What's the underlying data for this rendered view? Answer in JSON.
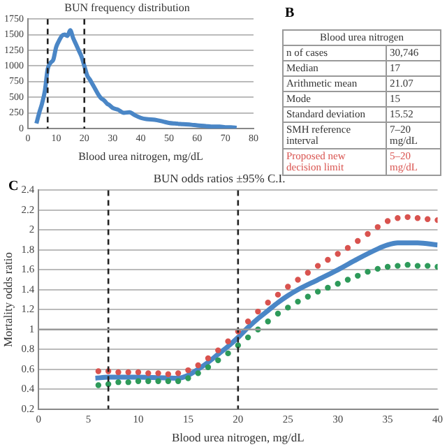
{
  "chart_data": [
    {
      "type": "line",
      "title": "BUN frequency distribution",
      "xlabel": "Blood urea nitrogen, mg/dL",
      "xlim": [
        0,
        80
      ],
      "xticks": [
        0,
        10,
        20,
        30,
        40,
        50,
        60,
        70,
        80
      ],
      "ylim": [
        0,
        1750
      ],
      "yticks": [
        0,
        250,
        500,
        750,
        1000,
        1250,
        1500,
        1750
      ],
      "grid": "y",
      "legend": false,
      "series": [
        {
          "color": "#4a86c6",
          "x": [
            3,
            4,
            5,
            6,
            7,
            8,
            9,
            10,
            11,
            12,
            13,
            14,
            15,
            16,
            17,
            18,
            19,
            20,
            21,
            22,
            23,
            24,
            25,
            26,
            27,
            28,
            29,
            30,
            32,
            34,
            36,
            38,
            40,
            42,
            45,
            48,
            50,
            52,
            55,
            58,
            60,
            63,
            65,
            68,
            70,
            72,
            74
          ],
          "values": [
            80,
            250,
            400,
            600,
            950,
            1050,
            1100,
            1300,
            1400,
            1480,
            1500,
            1480,
            1570,
            1450,
            1350,
            1250,
            1150,
            1000,
            850,
            780,
            700,
            620,
            540,
            480,
            450,
            400,
            370,
            330,
            300,
            250,
            260,
            210,
            170,
            150,
            140,
            110,
            90,
            80,
            70,
            60,
            50,
            40,
            30,
            30,
            20,
            20,
            10
          ]
        }
      ],
      "ref_lines": [
        {
          "axis": "x",
          "value": 7,
          "color": "#222222",
          "line_style": "dashed"
        },
        {
          "axis": "x",
          "value": 20,
          "color": "#222222",
          "line_style": "dashed"
        }
      ]
    },
    {
      "type": "other",
      "title": "Blood urea nitrogen",
      "annotations": [
        "B",
        "n of cases",
        "30,746",
        "Median",
        "17",
        "Arithmetic mean",
        "21.07",
        "Mode",
        "15",
        "Standard deviation",
        "15.52",
        "SMH reference interval",
        "7–20 mg/dL",
        "Proposed new decision limit",
        "5–20 mg/dL"
      ]
    },
    {
      "type": "line",
      "title": "BUN odds ratios ±95% C.I.",
      "xlabel": "Blood urea nitrogen, mg/dL",
      "ylabel": "Mortality odds ratio",
      "annotations": [
        "C"
      ],
      "xlim": [
        0,
        40
      ],
      "xticks": [
        0,
        5,
        10,
        15,
        20,
        25,
        30,
        35,
        40
      ],
      "ylim": [
        0.2,
        2.4
      ],
      "yticks": [
        0.2,
        0.4,
        0.6,
        0.8,
        1.0,
        1.2,
        1.4,
        1.6,
        1.8,
        2.0,
        2.2,
        2.4
      ],
      "grid": "y",
      "legend": false,
      "series": [
        {
          "type": "line",
          "color": "#4a86c6",
          "x": [
            5.7,
            7,
            10,
            14,
            15,
            16,
            17,
            18,
            19,
            20,
            21,
            22,
            23,
            24,
            25,
            26,
            28,
            30,
            32,
            34,
            35,
            36,
            37,
            38,
            40
          ],
          "values": [
            0.51,
            0.52,
            0.52,
            0.51,
            0.54,
            0.6,
            0.67,
            0.75,
            0.83,
            0.92,
            1.02,
            1.11,
            1.19,
            1.27,
            1.34,
            1.4,
            1.5,
            1.6,
            1.71,
            1.81,
            1.85,
            1.87,
            1.87,
            1.87,
            1.85
          ]
        },
        {
          "type": "scatter",
          "marker": "circle",
          "color": "#d9534f",
          "x": [
            6,
            7,
            8,
            9,
            10,
            11,
            12,
            13,
            14,
            15,
            16,
            17,
            18,
            19,
            20,
            21,
            22,
            23,
            24,
            25,
            26,
            27,
            28,
            29,
            30,
            31,
            32,
            33,
            34,
            35,
            36,
            37,
            38,
            39,
            40
          ],
          "values": [
            0.58,
            0.58,
            0.57,
            0.57,
            0.57,
            0.56,
            0.56,
            0.55,
            0.56,
            0.59,
            0.64,
            0.71,
            0.79,
            0.88,
            0.98,
            1.08,
            1.18,
            1.27,
            1.35,
            1.43,
            1.5,
            1.57,
            1.64,
            1.7,
            1.76,
            1.82,
            1.89,
            1.96,
            2.03,
            2.09,
            2.12,
            2.13,
            2.12,
            2.11,
            2.1
          ]
        },
        {
          "type": "scatter",
          "marker": "circle",
          "color": "#2e9a5a",
          "x": [
            6,
            7,
            8,
            9,
            10,
            11,
            12,
            13,
            14,
            15,
            16,
            17,
            18,
            19,
            20,
            21,
            22,
            23,
            24,
            25,
            26,
            27,
            28,
            29,
            30,
            31,
            32,
            33,
            34,
            35,
            36,
            37,
            38,
            39,
            40
          ],
          "values": [
            0.44,
            0.45,
            0.47,
            0.47,
            0.48,
            0.48,
            0.48,
            0.48,
            0.48,
            0.51,
            0.56,
            0.62,
            0.69,
            0.76,
            0.84,
            0.92,
            1.0,
            1.08,
            1.16,
            1.22,
            1.28,
            1.33,
            1.38,
            1.42,
            1.46,
            1.5,
            1.54,
            1.58,
            1.61,
            1.63,
            1.64,
            1.65,
            1.64,
            1.64,
            1.63
          ]
        }
      ],
      "ref_lines": [
        {
          "axis": "x",
          "value": 7,
          "color": "#222222",
          "line_style": "dashed"
        },
        {
          "axis": "x",
          "value": 20,
          "color": "#222222",
          "line_style": "dashed"
        },
        {
          "axis": "y",
          "value": 1.0,
          "color": "#999999",
          "line_style": "solid"
        }
      ]
    }
  ]
}
